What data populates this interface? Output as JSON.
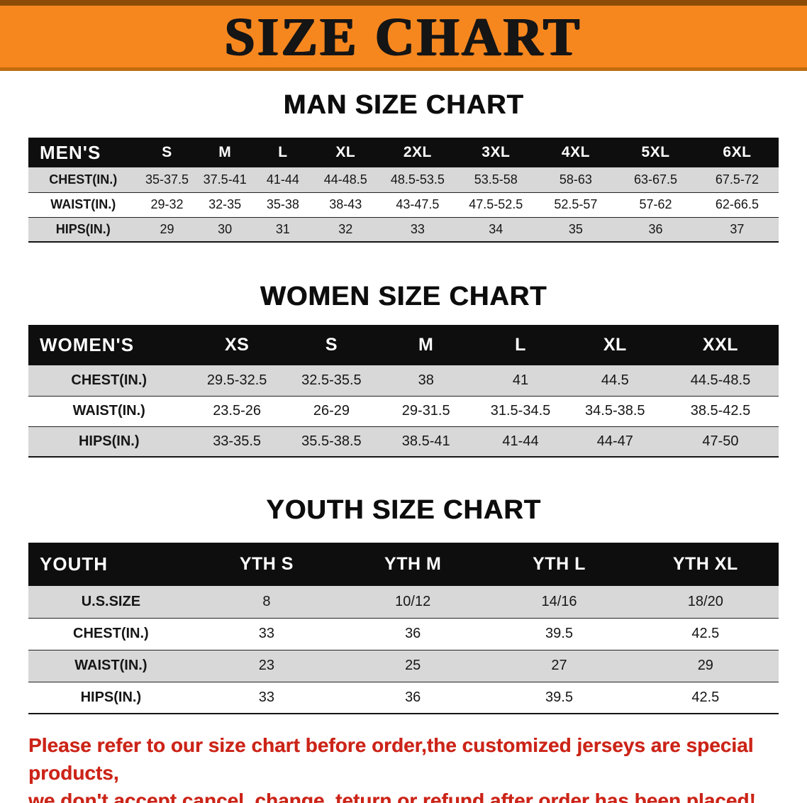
{
  "banner": {
    "title": "SIZE CHART"
  },
  "colors": {
    "banner_orange": "#f6871f",
    "table_header_black": "#0e0e0e",
    "row_gray": "#d8d8d8",
    "disclaimer_red": "#cc2418"
  },
  "sections": {
    "men": {
      "heading": "MAN SIZE CHART",
      "table": {
        "header": [
          "MEN'S",
          "S",
          "M",
          "L",
          "XL",
          "2XL",
          "3XL",
          "4XL",
          "5XL",
          "6XL"
        ],
        "rows": [
          [
            "CHEST(IN.)",
            "35-37.5",
            "37.5-41",
            "41-44",
            "44-48.5",
            "48.5-53.5",
            "53.5-58",
            "58-63",
            "63-67.5",
            "67.5-72"
          ],
          [
            "WAIST(IN.)",
            "29-32",
            "32-35",
            "35-38",
            "38-43",
            "43-47.5",
            "47.5-52.5",
            "52.5-57",
            "57-62",
            "62-66.5"
          ],
          [
            "HIPS(IN.)",
            "29",
            "30",
            "31",
            "32",
            "33",
            "34",
            "35",
            "36",
            "37"
          ]
        ]
      }
    },
    "women": {
      "heading": "WOMEN SIZE CHART",
      "table": {
        "header": [
          "WOMEN'S",
          "XS",
          "S",
          "M",
          "L",
          "XL",
          "XXL"
        ],
        "rows": [
          [
            "CHEST(IN.)",
            "29.5-32.5",
            "32.5-35.5",
            "38",
            "41",
            "44.5",
            "44.5-48.5"
          ],
          [
            "WAIST(IN.)",
            "23.5-26",
            "26-29",
            "29-31.5",
            "31.5-34.5",
            "34.5-38.5",
            "38.5-42.5"
          ],
          [
            "HIPS(IN.)",
            "33-35.5",
            "35.5-38.5",
            "38.5-41",
            "41-44",
            "44-47",
            "47-50"
          ]
        ]
      }
    },
    "youth": {
      "heading": "YOUTH SIZE CHART",
      "table": {
        "header": [
          "YOUTH",
          "YTH S",
          "YTH M",
          "YTH L",
          "YTH XL"
        ],
        "rows": [
          [
            "U.S.SIZE",
            "8",
            "10/12",
            "14/16",
            "18/20"
          ],
          [
            "CHEST(IN.)",
            "33",
            "36",
            "39.5",
            "42.5"
          ],
          [
            "WAIST(IN.)",
            "23",
            "25",
            "27",
            "29"
          ],
          [
            "HIPS(IN.)",
            "33",
            "36",
            "39.5",
            "42.5"
          ]
        ]
      }
    }
  },
  "disclaimer": {
    "line1": "Please refer to our size chart before order,the customized jerseys are special products,",
    "line2": "we don't accept cancel, change, teturn or refund after order has been placed!"
  }
}
